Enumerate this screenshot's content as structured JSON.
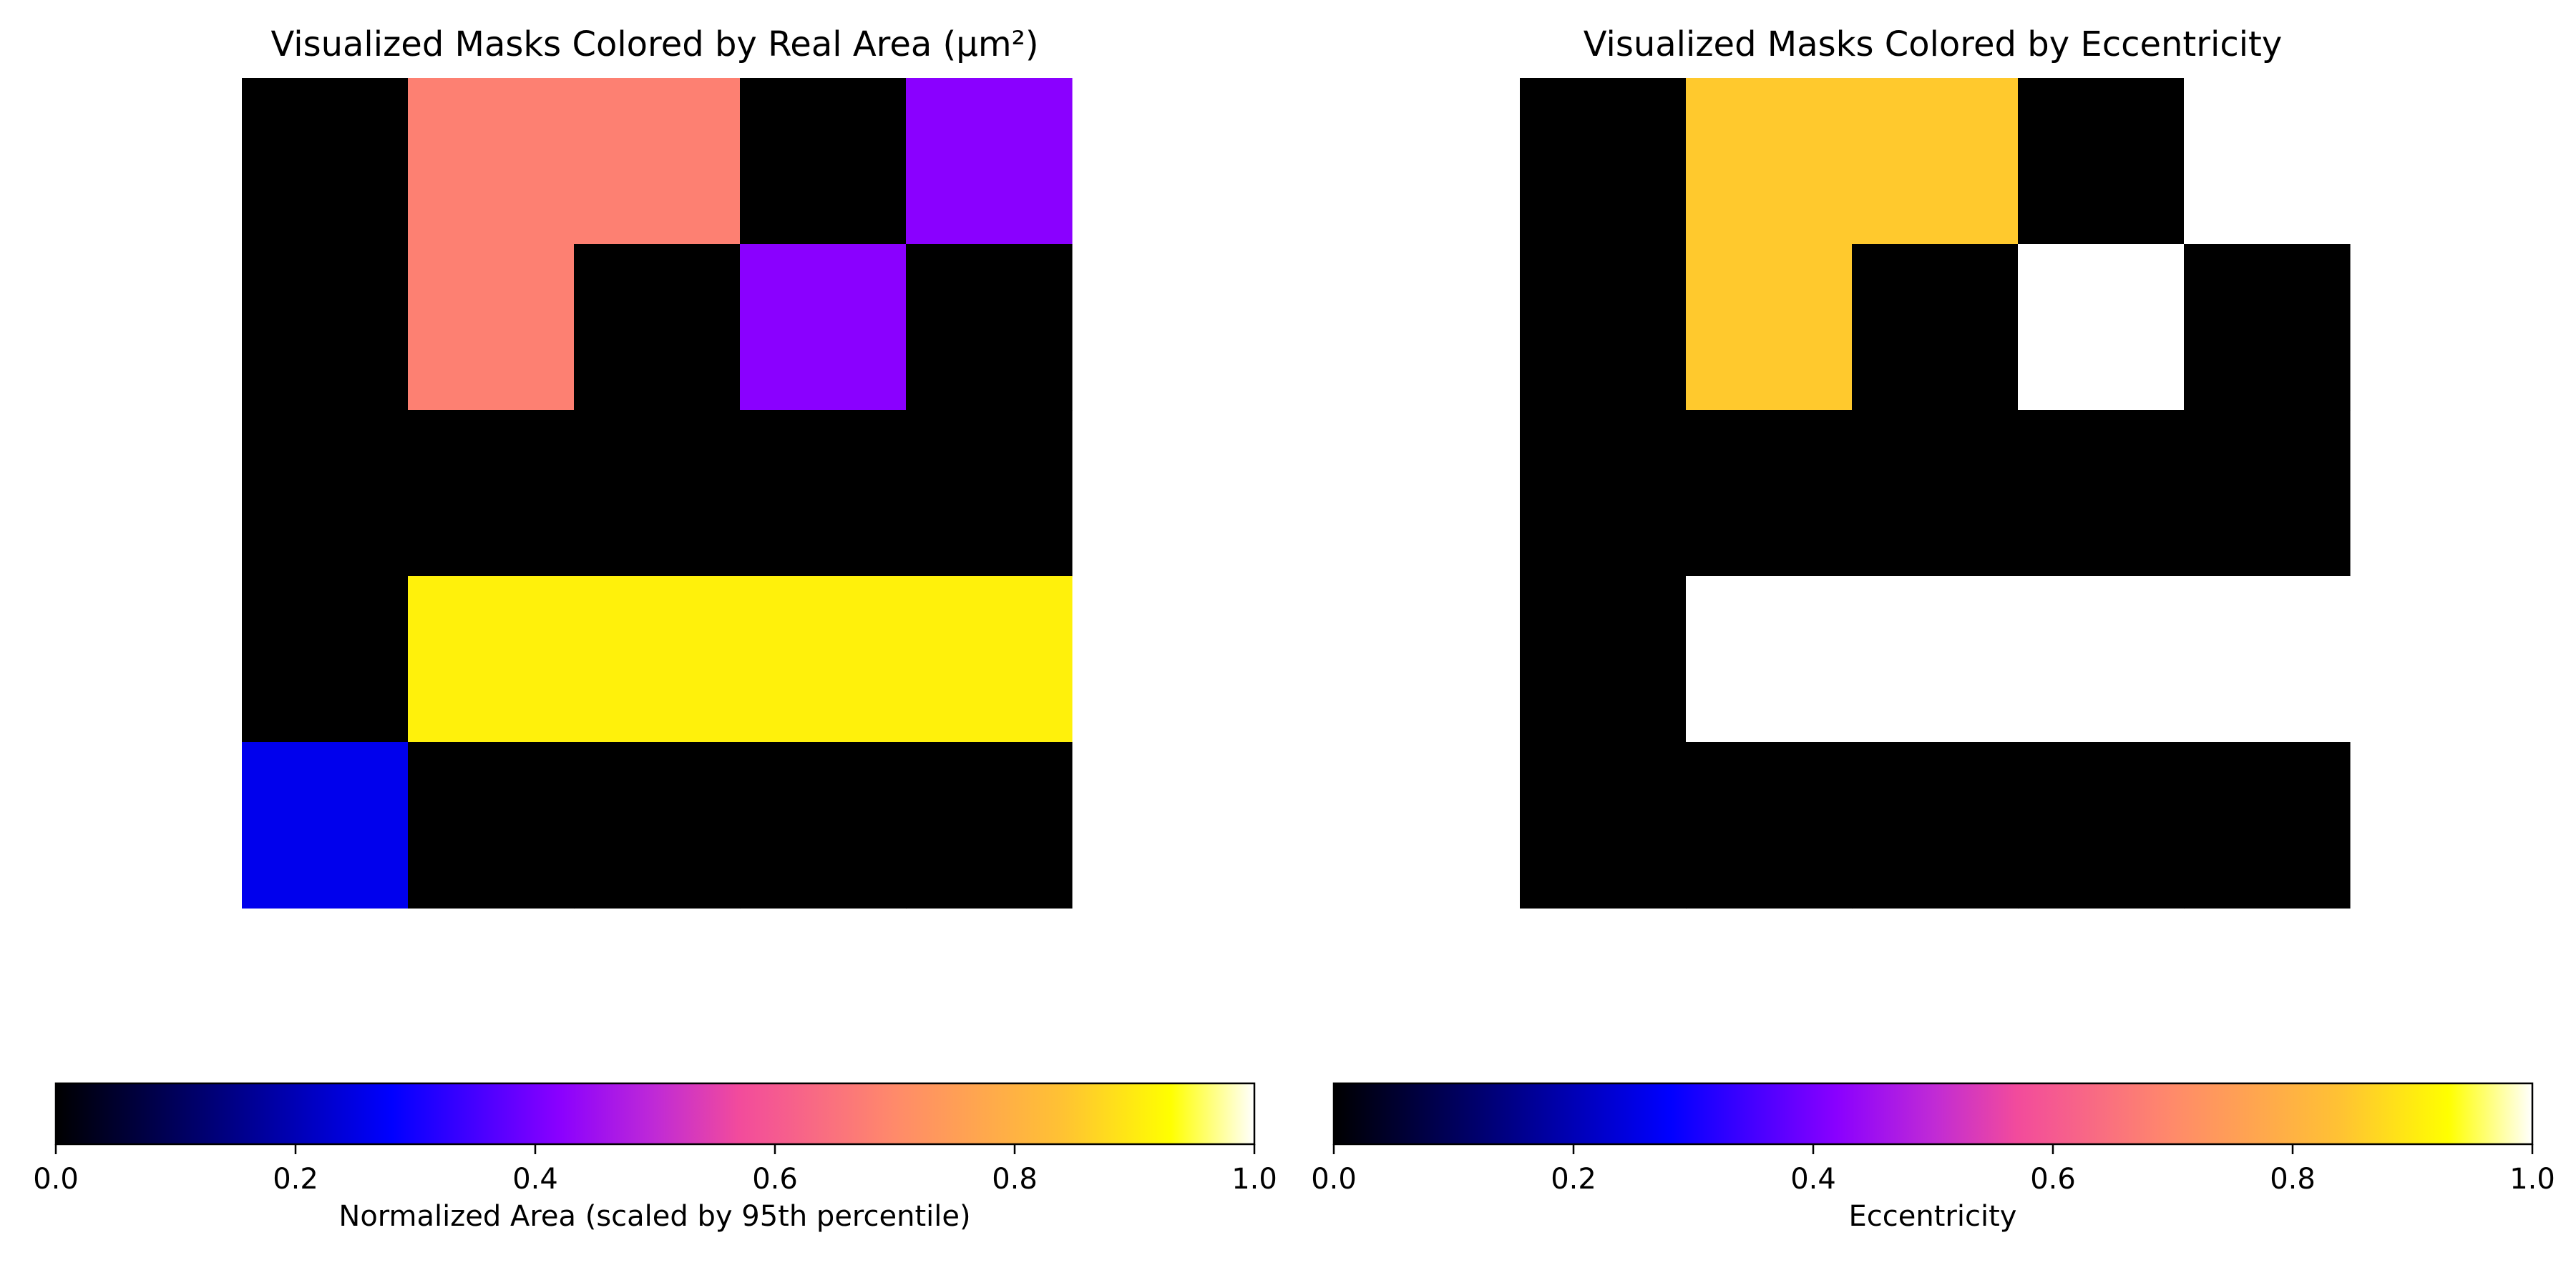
{
  "chart_data": [
    {
      "type": "heatmap",
      "title": "Visualized Masks Colored by Real Area (µm²)",
      "colormap": "gnuplot2",
      "vmin": 0.0,
      "vmax": 1.0,
      "rows": 5,
      "cols": 5,
      "grid": false,
      "axes_visible": false,
      "values": [
        [
          0.0,
          0.68,
          0.68,
          0.0,
          0.42
        ],
        [
          0.0,
          0.68,
          0.0,
          0.42,
          0.0
        ],
        [
          0.0,
          0.0,
          0.0,
          0.0,
          0.0
        ],
        [
          0.0,
          0.91,
          0.91,
          0.91,
          0.91
        ],
        [
          0.26,
          0.0,
          0.0,
          0.0,
          0.0
        ]
      ],
      "colorbar": {
        "orientation": "horizontal",
        "label": "Normalized Area (scaled by 95th percentile)",
        "ticks": [
          "0.0",
          "0.2",
          "0.4",
          "0.6",
          "0.8",
          "1.0"
        ]
      }
    },
    {
      "type": "heatmap",
      "title": "Visualized Masks Colored by Eccentricity",
      "colormap": "gnuplot2",
      "vmin": 0.0,
      "vmax": 1.0,
      "rows": 5,
      "cols": 5,
      "grid": false,
      "axes_visible": false,
      "values": [
        [
          0.0,
          0.85,
          0.85,
          0.0,
          null
        ],
        [
          0.0,
          0.85,
          0.0,
          1.0,
          0.0
        ],
        [
          0.0,
          0.0,
          0.0,
          0.0,
          0.0
        ],
        [
          0.0,
          null,
          null,
          null,
          null
        ],
        [
          0.0,
          0.0,
          0.0,
          0.0,
          0.0
        ]
      ],
      "colorbar": {
        "orientation": "horizontal",
        "label": "Eccentricity",
        "ticks": [
          "0.0",
          "0.2",
          "0.4",
          "0.6",
          "0.8",
          "1.0"
        ]
      }
    }
  ]
}
